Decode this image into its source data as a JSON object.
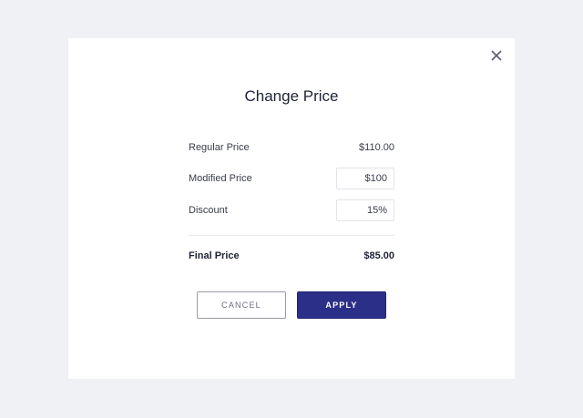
{
  "dialog": {
    "title": "Change Price",
    "close_icon": "close-icon",
    "regular_price": {
      "label": "Regular Price",
      "value": "$110.00"
    },
    "modified_price": {
      "label": "Modified Price",
      "value": "$100"
    },
    "discount": {
      "label": "Discount",
      "value": "15%"
    },
    "final_price": {
      "label": "Final Price",
      "value": "$85.00"
    },
    "cancel_label": "CANCEL",
    "apply_label": "APPLY",
    "colors": {
      "accent": "#2b2f87",
      "background": "#f0f1f5"
    }
  }
}
